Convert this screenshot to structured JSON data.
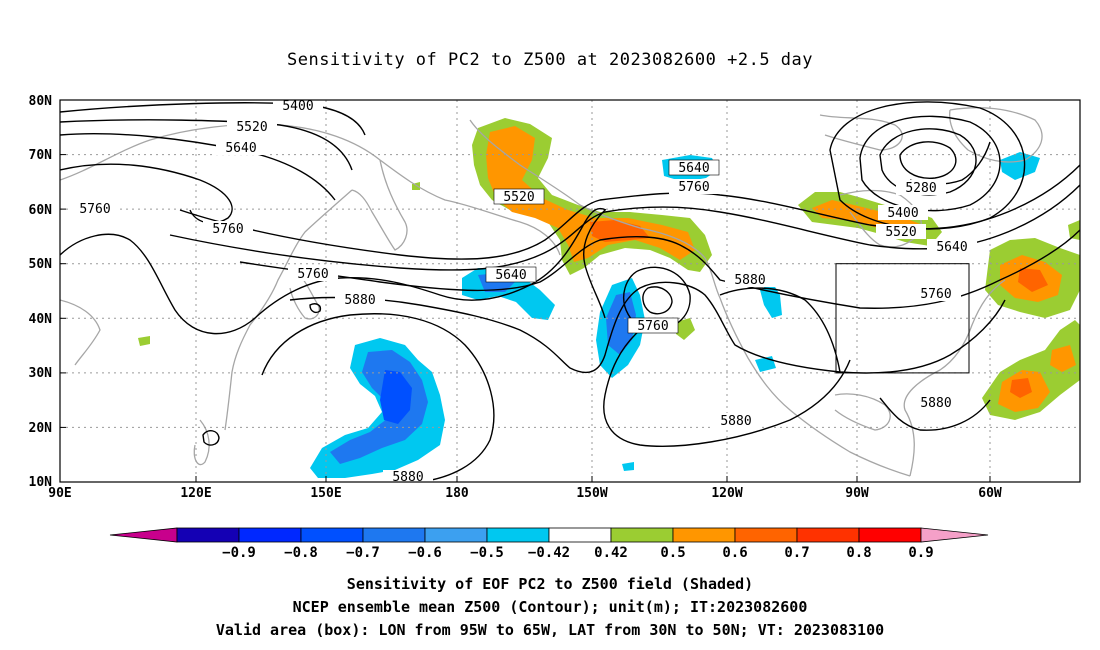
{
  "title": "Sensitivity of PC2 to Z500 at 2023082600 +2.5 day",
  "map": {
    "lat_labels": [
      "80N",
      "70N",
      "60N",
      "50N",
      "40N",
      "30N",
      "20N",
      "10N"
    ],
    "lon_labels": [
      "90E",
      "120E",
      "150E",
      "180",
      "150W",
      "120W",
      "90W",
      "60W"
    ],
    "contour_labels": [
      "5400",
      "5520",
      "5640",
      "5760",
      "5760",
      "5520",
      "5640",
      "5760",
      "5640",
      "5760",
      "5880",
      "5760",
      "5880",
      "5880",
      "5880",
      "5280",
      "5400",
      "5520",
      "5640",
      "5760",
      "5880"
    ],
    "box": {
      "lon_from": "95W",
      "lon_to": "65W",
      "lat_from": "30N",
      "lat_to": "50N"
    }
  },
  "colorbar": {
    "labels": [
      "−0.9",
      "−0.8",
      "−0.7",
      "−0.6",
      "−0.5",
      "−0.42",
      "0.42",
      "0.5",
      "0.6",
      "0.7",
      "0.8",
      "0.9"
    ],
    "colors": [
      "#c8008c",
      "#1400b4",
      "#0028ff",
      "#0050ff",
      "#1e78f0",
      "#3ca0f0",
      "#00c8f0",
      "#ffffff",
      "#9bcd32",
      "#ff9600",
      "#ff6400",
      "#ff3200",
      "#ff0000",
      "#f5a0c8"
    ]
  },
  "captions": {
    "line1": "Sensitivity of EOF PC2 to Z500 field (Shaded)",
    "line2": "NCEP ensemble mean Z500 (Contour); unit(m); IT:2023082600",
    "line3": "Valid area (box): LON from 95W to 65W, LAT from 30N to 50N; VT: 2023083100"
  }
}
